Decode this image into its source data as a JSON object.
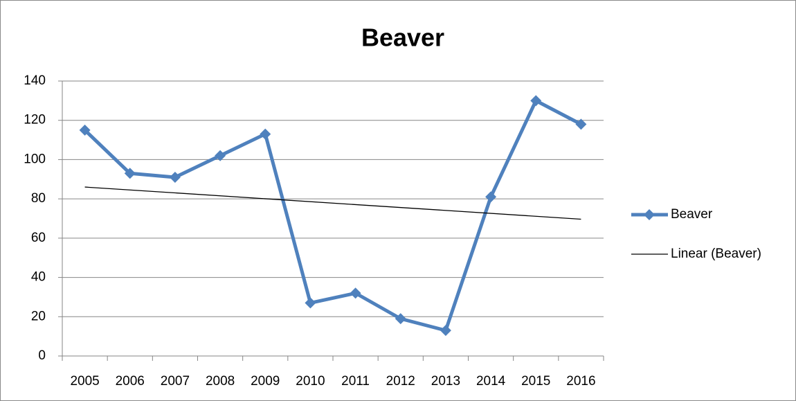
{
  "chart_data": {
    "type": "line",
    "title": "Beaver",
    "categories": [
      "2005",
      "2006",
      "2007",
      "2008",
      "2009",
      "2010",
      "2011",
      "2012",
      "2013",
      "2014",
      "2015",
      "2016"
    ],
    "series": [
      {
        "name": "Beaver",
        "color": "#4f81bd",
        "values": [
          115,
          93,
          91,
          102,
          113,
          27,
          32,
          19,
          13,
          81,
          130,
          118
        ]
      }
    ],
    "trendline": {
      "type": "linear",
      "name": "Linear (Beaver)",
      "color": "#000000"
    },
    "ylim": [
      0,
      140
    ],
    "yticks": [
      0,
      20,
      40,
      60,
      80,
      100,
      120,
      140
    ],
    "grid": true,
    "legend": "right"
  }
}
